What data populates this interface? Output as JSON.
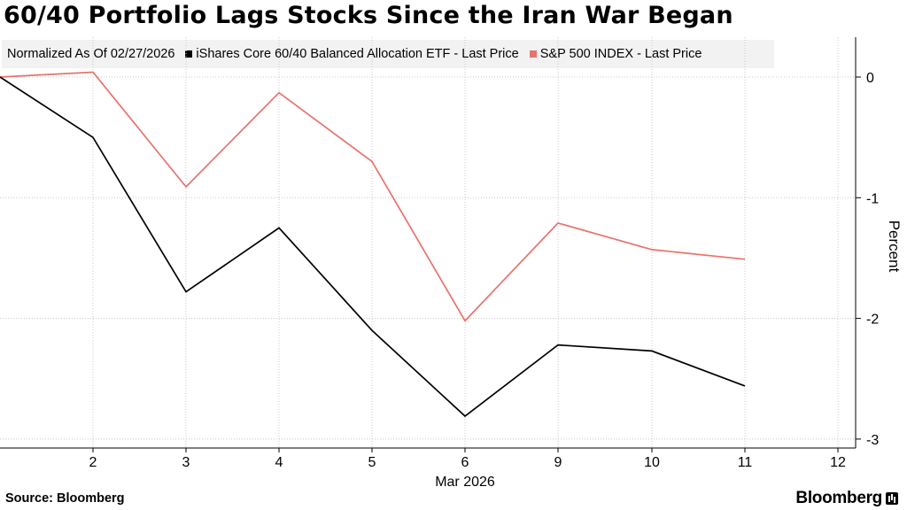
{
  "chart_data": {
    "type": "line",
    "title": "60/40 Portfolio Lags Stocks Since the Iran War Began",
    "legend_note": "Normalized As Of 02/27/2026",
    "xlabel": "Mar 2026",
    "ylabel": "Percent",
    "x": [
      1,
      2,
      3,
      4,
      5,
      6,
      9,
      10,
      11
    ],
    "x_ticks": [
      "2",
      "3",
      "4",
      "5",
      "6",
      "9",
      "10",
      "11",
      "12"
    ],
    "x_range": [
      1,
      12
    ],
    "y_ticks": [
      "0",
      "-1",
      "-2",
      "-3"
    ],
    "y_tick_values": [
      0,
      -1,
      -2,
      -3
    ],
    "ylim": [
      -3,
      0.3
    ],
    "grid": true,
    "series": [
      {
        "name": "iShares Core 60/40 Balanced Allocation ETF - Last Price",
        "color": "#000000",
        "values": [
          0,
          -0.5,
          -1.78,
          -1.25,
          -2.1,
          -2.81,
          -2.22,
          -2.27,
          -2.56
        ]
      },
      {
        "name": "S&P 500 INDEX - Last Price",
        "color": "#e8726c",
        "values": [
          0,
          0.04,
          -0.91,
          -0.13,
          -0.7,
          -2.02,
          -1.21,
          -1.43,
          -1.51
        ]
      }
    ]
  },
  "footer": {
    "source": "Source: Bloomberg",
    "brand": "Bloomberg"
  }
}
